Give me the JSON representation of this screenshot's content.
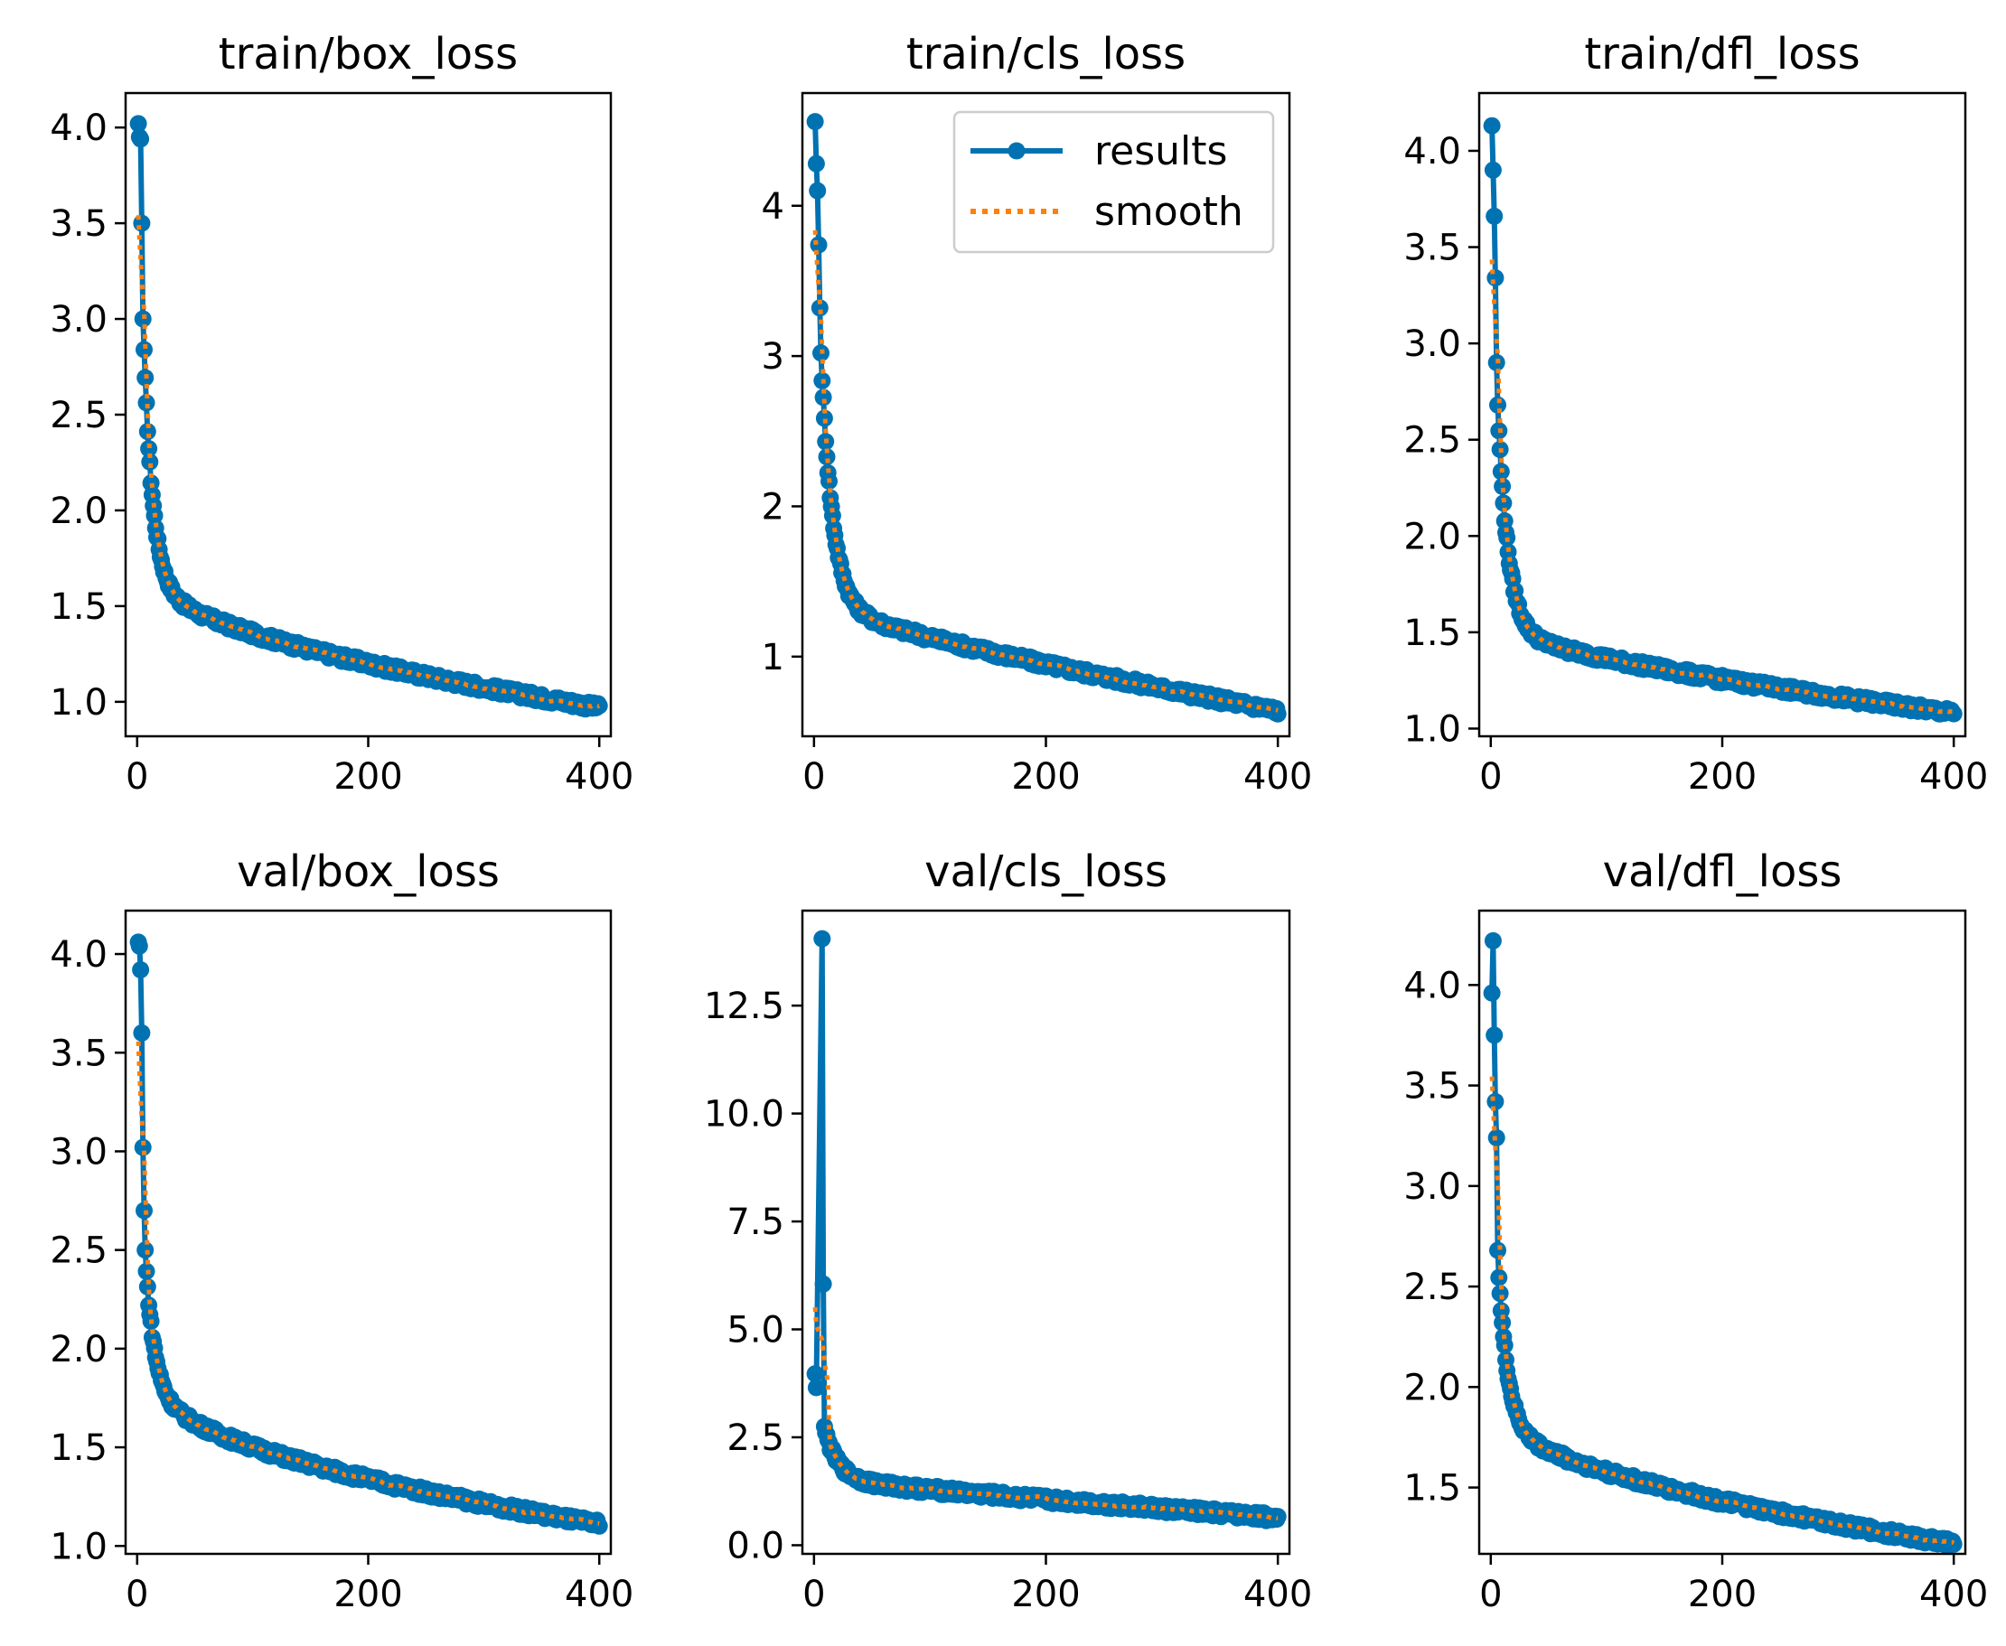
{
  "colors": {
    "results": "#0072B2",
    "smooth": "#FF7F0E",
    "frame": "#000000",
    "background": "#FFFFFF"
  },
  "chart_data": [
    {
      "type": "line",
      "title": "train/box_loss",
      "xlabel": "",
      "ylabel": "",
      "xlim": [
        -10,
        410
      ],
      "ylim": [
        0.82,
        4.18
      ],
      "xticks": [
        0,
        200,
        400
      ],
      "yticks": [
        1.0,
        1.5,
        2.0,
        2.5,
        3.0,
        3.5,
        4.0
      ],
      "ytick_labels": [
        "1.0",
        "1.5",
        "2.0",
        "2.5",
        "3.0",
        "3.5",
        "4.0"
      ],
      "curve": {
        "start": 4.02,
        "end": 0.97,
        "spike_epochs": [
          1,
          2,
          3,
          4,
          5,
          6
        ],
        "spike_values": [
          4.02,
          3.95,
          3.94,
          3.5,
          3.0,
          2.84
        ],
        "decay": 0.62,
        "tau": 8,
        "tail_power": 0.55
      },
      "series": [
        {
          "name": "results"
        },
        {
          "name": "smooth"
        }
      ],
      "legend": null
    },
    {
      "type": "line",
      "title": "train/cls_loss",
      "xlabel": "",
      "ylabel": "",
      "xlim": [
        -10,
        410
      ],
      "ylim": [
        0.47,
        4.75
      ],
      "xticks": [
        0,
        200,
        400
      ],
      "yticks": [
        1,
        2,
        3,
        4
      ],
      "ytick_labels": [
        "1",
        "2",
        "3",
        "4"
      ],
      "curve": {
        "start": 4.56,
        "end": 0.64,
        "spike_epochs": [
          1,
          2,
          3,
          4,
          5,
          6
        ],
        "spike_values": [
          4.56,
          4.28,
          4.1,
          3.74,
          3.32,
          3.02
        ],
        "decay": 0.7,
        "tau": 10,
        "tail_power": 0.8
      },
      "series": [
        {
          "name": "results"
        },
        {
          "name": "smooth"
        }
      ],
      "legend": {
        "position": "upper right",
        "entries": [
          "results",
          "smooth"
        ]
      }
    },
    {
      "type": "line",
      "title": "train/dfl_loss",
      "xlabel": "",
      "ylabel": "",
      "xlim": [
        -10,
        410
      ],
      "ylim": [
        0.96,
        4.3
      ],
      "xticks": [
        0,
        200,
        400
      ],
      "yticks": [
        1.0,
        1.5,
        2.0,
        2.5,
        3.0,
        3.5,
        4.0
      ],
      "ytick_labels": [
        "1.0",
        "1.5",
        "2.0",
        "2.5",
        "3.0",
        "3.5",
        "4.0"
      ],
      "curve": {
        "start": 4.13,
        "end": 1.08,
        "spike_epochs": [
          1,
          2,
          3,
          4,
          5,
          6
        ],
        "spike_values": [
          4.13,
          3.9,
          3.66,
          3.34,
          2.9,
          2.68
        ],
        "decay": 0.72,
        "tau": 9,
        "tail_power": 0.7
      },
      "series": [
        {
          "name": "results"
        },
        {
          "name": "smooth"
        }
      ],
      "legend": null
    },
    {
      "type": "line",
      "title": "val/box_loss",
      "xlabel": "",
      "ylabel": "",
      "xlim": [
        -10,
        410
      ],
      "ylim": [
        0.96,
        4.22
      ],
      "xticks": [
        0,
        200,
        400
      ],
      "yticks": [
        1.0,
        1.5,
        2.0,
        2.5,
        3.0,
        3.5,
        4.0
      ],
      "ytick_labels": [
        "1.0",
        "1.5",
        "2.0",
        "2.5",
        "3.0",
        "3.5",
        "4.0"
      ],
      "curve": {
        "start": 4.06,
        "end": 1.11,
        "spike_epochs": [
          1,
          2,
          3,
          4,
          5,
          6,
          7
        ],
        "spike_values": [
          4.06,
          4.04,
          3.92,
          3.6,
          3.02,
          2.7,
          2.5
        ],
        "decay": 0.45,
        "tau": 8,
        "tail_power": 0.5
      },
      "series": [
        {
          "name": "results"
        },
        {
          "name": "smooth"
        }
      ],
      "legend": null
    },
    {
      "type": "line",
      "title": "val/cls_loss",
      "xlabel": "",
      "ylabel": "",
      "xlim": [
        -10,
        410
      ],
      "ylim": [
        -0.2,
        14.7
      ],
      "xticks": [
        0,
        200,
        400
      ],
      "yticks": [
        0.0,
        2.5,
        5.0,
        7.5,
        10.0,
        12.5
      ],
      "ytick_labels": [
        "0.0",
        "2.5",
        "5.0",
        "7.5",
        "10.0",
        "12.5"
      ],
      "curve": {
        "start": 3.97,
        "end": 0.64,
        "spike_epochs": [
          1,
          2,
          7,
          8,
          9,
          10
        ],
        "spike_values": [
          3.97,
          3.65,
          14.05,
          6.05,
          2.75,
          2.6
        ],
        "decay": 0.55,
        "tau": 12,
        "tail_power": 0.9
      },
      "series": [
        {
          "name": "results"
        },
        {
          "name": "smooth"
        }
      ],
      "legend": null
    },
    {
      "type": "line",
      "title": "val/dfl_loss",
      "xlabel": "",
      "ylabel": "",
      "xlim": [
        -10,
        410
      ],
      "ylim": [
        1.17,
        4.37
      ],
      "xticks": [
        0,
        200,
        400
      ],
      "yticks": [
        1.5,
        2.0,
        2.5,
        3.0,
        3.5,
        4.0
      ],
      "ytick_labels": [
        "1.5",
        "2.0",
        "2.5",
        "3.0",
        "3.5",
        "4.0"
      ],
      "curve": {
        "start": 4.22,
        "end": 1.22,
        "spike_epochs": [
          1,
          2,
          3,
          4,
          5,
          6
        ],
        "spike_values": [
          3.96,
          4.22,
          3.75,
          3.42,
          3.24,
          2.68
        ],
        "decay": 0.55,
        "tau": 8,
        "tail_power": 0.55
      },
      "series": [
        {
          "name": "results"
        },
        {
          "name": "smooth"
        }
      ],
      "legend": null
    }
  ]
}
